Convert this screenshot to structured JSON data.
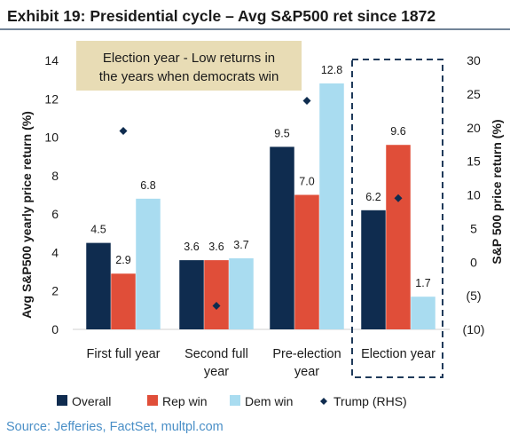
{
  "chart_data": {
    "type": "bar",
    "title": "Exhibit 19: Presidential cycle – Avg S&P500 ret since 1872",
    "source": "Source: Jefferies, FactSet, multpl.com",
    "categories": [
      [
        "First full year"
      ],
      [
        "Second full",
        "year"
      ],
      [
        "Pre-election",
        "year"
      ],
      [
        "Election year"
      ]
    ],
    "series": [
      {
        "name": "Overall",
        "axis": "left",
        "color": "#0f2c4f",
        "values": [
          4.5,
          3.6,
          9.5,
          6.2
        ],
        "labels": [
          "4.5",
          "3.6",
          "9.5",
          "6.2"
        ]
      },
      {
        "name": "Rep win",
        "axis": "left",
        "color": "#e04e39",
        "values": [
          2.9,
          3.6,
          7.0,
          9.6
        ],
        "labels": [
          "2.9",
          "3.6",
          "7.0",
          "9.6"
        ]
      },
      {
        "name": "Dem win",
        "axis": "left",
        "color": "#a9dcf0",
        "values": [
          6.8,
          3.7,
          12.8,
          1.7
        ],
        "labels": [
          "6.8",
          "3.7",
          "12.8",
          "1.7"
        ]
      },
      {
        "name": "Trump (RHS)",
        "axis": "right",
        "kind": "marker",
        "color": "#0f2c4f",
        "values": [
          19.5,
          -6.5,
          24.0,
          9.5
        ]
      }
    ],
    "ylabel": "Avg S&P500 yearly price return (%)",
    "ylim": [
      0,
      14
    ],
    "yticks": [
      "0",
      "2",
      "4",
      "6",
      "8",
      "10",
      "12",
      "14"
    ],
    "y2label": "S&P 500 price return (%)",
    "y2lim": [
      -10,
      30
    ],
    "y2ticks": [
      "(10)",
      "(5)",
      "0",
      "5",
      "10",
      "15",
      "20",
      "25",
      "30"
    ],
    "annotation": {
      "lines": [
        "Election year - Low returns in",
        "the years when democrats win"
      ],
      "background": "#e8dcb5"
    },
    "highlight_category": 3,
    "grid": false,
    "legend_position": "bottom"
  }
}
